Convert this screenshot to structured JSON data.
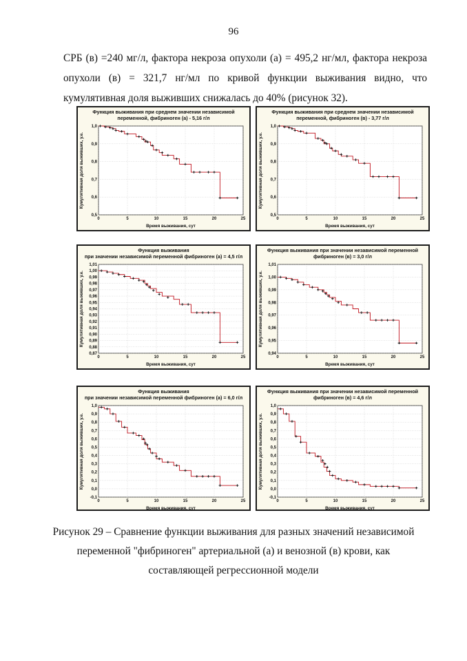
{
  "page": {
    "number": "96",
    "lines": [
      "СРБ (в) =240 мг/л, фактора некроза опухоли (а) = 495,2 нг/мл, фактора некроза",
      "опухоли (в) = 321,7 нг/мл по кривой функции выживания видно, что",
      "кумулятивная доля выживших снижалась до 40% (рисунок 32)."
    ],
    "caption_lines": [
      "Рисунок 29 – Сравнение функции выживания для разных значений независимой",
      "переменной \"фибриноген\" артериальной (а) и венозной (в) крови, как",
      "составляющей регрессионной модели"
    ]
  },
  "colors": {
    "curve": "#c0141e",
    "marker": "#111111",
    "plot_bg": "#ffffff",
    "panel_bg": "#fbf9ec",
    "grid": "#b8b8b8"
  },
  "chart_data": [
    {
      "type": "line",
      "title_lines": [
        "Функция выживания при среднем значении независимой",
        "переменной, фибриноген (а) - 5,16 г/л"
      ],
      "xlabel": "Время выживания, сут",
      "ylabel": "Кумулятивная доля выживших, у.е.",
      "xlim": [
        0,
        25
      ],
      "ylim": [
        0.5,
        1.0
      ],
      "xticks": [
        0,
        5,
        10,
        15,
        20,
        25
      ],
      "xtick_labels": [
        "0",
        "5",
        "10",
        "15",
        "20",
        "25"
      ],
      "yticks": [
        0.5,
        0.6,
        0.7,
        0.8,
        0.9,
        1.0
      ],
      "ytick_labels": [
        "0,5",
        "0,6",
        "0,7",
        "0,8",
        "0,9",
        "1,0"
      ],
      "grid": true,
      "steps": [
        [
          0,
          1.0
        ],
        [
          1,
          0.995
        ],
        [
          2,
          0.99
        ],
        [
          2.5,
          0.985
        ],
        [
          3,
          0.975
        ],
        [
          3.5,
          0.97
        ],
        [
          4.5,
          0.955
        ],
        [
          6.5,
          0.94
        ],
        [
          7.5,
          0.925
        ],
        [
          8,
          0.91
        ],
        [
          9,
          0.89
        ],
        [
          9.5,
          0.865
        ],
        [
          10.5,
          0.85
        ],
        [
          11,
          0.835
        ],
        [
          13,
          0.815
        ],
        [
          14,
          0.785
        ],
        [
          16,
          0.74
        ],
        [
          21,
          0.595
        ],
        [
          24,
          0.595
        ]
      ],
      "markers": [
        [
          0.3,
          1.0
        ],
        [
          1.2,
          0.995
        ],
        [
          2,
          0.99
        ],
        [
          2.5,
          0.985
        ],
        [
          3,
          0.975
        ],
        [
          4,
          0.97
        ],
        [
          5,
          0.955
        ],
        [
          7,
          0.94
        ],
        [
          7.8,
          0.925
        ],
        [
          8.2,
          0.915
        ],
        [
          8.5,
          0.91
        ],
        [
          9.3,
          0.89
        ],
        [
          10,
          0.865
        ],
        [
          11,
          0.85
        ],
        [
          12,
          0.835
        ],
        [
          13.5,
          0.815
        ],
        [
          15,
          0.785
        ],
        [
          16.5,
          0.74
        ],
        [
          17.5,
          0.74
        ],
        [
          19,
          0.74
        ],
        [
          20,
          0.74
        ],
        [
          21,
          0.595
        ],
        [
          24,
          0.595
        ]
      ]
    },
    {
      "type": "line",
      "title_lines": [
        "Функция выживания при среднем значении независимой",
        "переменной, фибриноген (в) - 3,77 г/л"
      ],
      "xlabel": "Время выживания, сут",
      "ylabel": "Кумулятивная доля выживших, у.е.",
      "xlim": [
        0,
        25
      ],
      "ylim": [
        0.5,
        1.0
      ],
      "xticks": [
        0,
        5,
        10,
        15,
        20,
        25
      ],
      "xtick_labels": [
        "0",
        "5",
        "10",
        "15",
        "20",
        "25"
      ],
      "yticks": [
        0.5,
        0.6,
        0.7,
        0.8,
        0.9,
        1.0
      ],
      "ytick_labels": [
        "0,5",
        "0,6",
        "0,7",
        "0,8",
        "0,9",
        "1,0"
      ],
      "grid": true,
      "steps": [
        [
          0,
          1.0
        ],
        [
          1,
          0.995
        ],
        [
          2,
          0.99
        ],
        [
          2.5,
          0.985
        ],
        [
          3,
          0.975
        ],
        [
          3.5,
          0.97
        ],
        [
          4.5,
          0.96
        ],
        [
          6.5,
          0.93
        ],
        [
          7.5,
          0.92
        ],
        [
          8,
          0.9
        ],
        [
          9,
          0.875
        ],
        [
          9.5,
          0.86
        ],
        [
          10.5,
          0.84
        ],
        [
          11,
          0.83
        ],
        [
          13,
          0.81
        ],
        [
          14,
          0.79
        ],
        [
          16,
          0.715
        ],
        [
          21,
          0.595
        ],
        [
          24,
          0.595
        ]
      ],
      "markers": [
        [
          0.3,
          1.0
        ],
        [
          1.2,
          0.995
        ],
        [
          2,
          0.99
        ],
        [
          2.5,
          0.985
        ],
        [
          3,
          0.975
        ],
        [
          4,
          0.97
        ],
        [
          5,
          0.96
        ],
        [
          7,
          0.93
        ],
        [
          7.8,
          0.92
        ],
        [
          8.2,
          0.905
        ],
        [
          8.5,
          0.9
        ],
        [
          9.3,
          0.875
        ],
        [
          10,
          0.86
        ],
        [
          11,
          0.84
        ],
        [
          12,
          0.83
        ],
        [
          13.5,
          0.81
        ],
        [
          15,
          0.79
        ],
        [
          16.5,
          0.715
        ],
        [
          17.5,
          0.715
        ],
        [
          19,
          0.715
        ],
        [
          20,
          0.715
        ],
        [
          21,
          0.595
        ],
        [
          24,
          0.595
        ]
      ]
    },
    {
      "type": "line",
      "title_lines": [
        "Функция выживания",
        "при значении независимой переменной фибриноген (а) = 4,5 г/л"
      ],
      "xlabel": "Время выживания, сут",
      "ylabel": "Кумулятивная доля выживших, у.е.",
      "xlim": [
        0,
        25
      ],
      "ylim": [
        0.87,
        1.01
      ],
      "xticks": [
        0,
        5,
        10,
        15,
        20,
        25
      ],
      "xtick_labels": [
        "0",
        "5",
        "10",
        "15",
        "20",
        "25"
      ],
      "yticks": [
        0.87,
        0.88,
        0.89,
        0.9,
        0.91,
        0.92,
        0.93,
        0.94,
        0.95,
        0.96,
        0.97,
        0.98,
        0.99,
        1.0,
        1.01
      ],
      "ytick_labels": [
        "0,87",
        "0,88",
        "0,89",
        "0,90",
        "0,91",
        "0,92",
        "0,93",
        "0,94",
        "0,95",
        "0,96",
        "0,97",
        "0,98",
        "0,99",
        "1,00",
        "1,01"
      ],
      "grid": true,
      "steps": [
        [
          0,
          1.0
        ],
        [
          1.5,
          0.998
        ],
        [
          2.5,
          0.996
        ],
        [
          3.5,
          0.994
        ],
        [
          4.5,
          0.991
        ],
        [
          5.5,
          0.988
        ],
        [
          7,
          0.985
        ],
        [
          8,
          0.98
        ],
        [
          8.5,
          0.976
        ],
        [
          9,
          0.972
        ],
        [
          10,
          0.966
        ],
        [
          11,
          0.96
        ],
        [
          13,
          0.955
        ],
        [
          14,
          0.947
        ],
        [
          16,
          0.934
        ],
        [
          21,
          0.887
        ],
        [
          24,
          0.887
        ]
      ],
      "markers": [
        [
          0.5,
          1.0
        ],
        [
          1.5,
          0.998
        ],
        [
          2.5,
          0.996
        ],
        [
          3.5,
          0.994
        ],
        [
          4.5,
          0.991
        ],
        [
          6,
          0.988
        ],
        [
          7,
          0.985
        ],
        [
          7.8,
          0.983
        ],
        [
          8.3,
          0.978
        ],
        [
          8.8,
          0.974
        ],
        [
          9.5,
          0.969
        ],
        [
          10.5,
          0.963
        ],
        [
          12,
          0.958
        ],
        [
          14.5,
          0.947
        ],
        [
          15.5,
          0.947
        ],
        [
          17,
          0.934
        ],
        [
          18,
          0.934
        ],
        [
          19,
          0.934
        ],
        [
          20,
          0.934
        ],
        [
          21,
          0.887
        ],
        [
          24,
          0.887
        ]
      ]
    },
    {
      "type": "line",
      "title_lines": [
        "Функция выживания при   значении независимой переменной",
        "фибриноген (в) = 3,0 г/л"
      ],
      "xlabel": "Время выживания, сут",
      "ylabel": "Кумулятивная доля выживших, у.е.",
      "xlim": [
        0,
        25
      ],
      "ylim": [
        0.94,
        1.01
      ],
      "xticks": [
        0,
        5,
        10,
        15,
        20,
        25
      ],
      "xtick_labels": [
        "0",
        "5",
        "10",
        "15",
        "20",
        "25"
      ],
      "yticks": [
        0.94,
        0.95,
        0.96,
        0.97,
        0.98,
        0.99,
        1.0,
        1.01
      ],
      "ytick_labels": [
        "0,94",
        "0,95",
        "0,96",
        "0,97",
        "0,98",
        "0,99",
        "1,00",
        "1,01"
      ],
      "grid": true,
      "steps": [
        [
          0,
          1.0
        ],
        [
          1.5,
          0.999
        ],
        [
          2.5,
          0.998
        ],
        [
          3.5,
          0.996
        ],
        [
          4.5,
          0.994
        ],
        [
          5.5,
          0.992
        ],
        [
          7,
          0.99
        ],
        [
          8,
          0.988
        ],
        [
          8.5,
          0.986
        ],
        [
          9,
          0.984
        ],
        [
          10,
          0.981
        ],
        [
          11,
          0.978
        ],
        [
          13,
          0.975
        ],
        [
          14,
          0.972
        ],
        [
          16,
          0.966
        ],
        [
          21,
          0.948
        ],
        [
          24,
          0.948
        ]
      ],
      "markers": [
        [
          0.5,
          1.0
        ],
        [
          1.5,
          0.999
        ],
        [
          2.5,
          0.998
        ],
        [
          3.5,
          0.996
        ],
        [
          4.5,
          0.994
        ],
        [
          6,
          0.992
        ],
        [
          7,
          0.99
        ],
        [
          7.8,
          0.989
        ],
        [
          8.3,
          0.987
        ],
        [
          8.8,
          0.985
        ],
        [
          9.5,
          0.983
        ],
        [
          10.5,
          0.98
        ],
        [
          12,
          0.978
        ],
        [
          14.5,
          0.972
        ],
        [
          15.5,
          0.972
        ],
        [
          17,
          0.966
        ],
        [
          18,
          0.966
        ],
        [
          19,
          0.966
        ],
        [
          20,
          0.966
        ],
        [
          21,
          0.948
        ],
        [
          24,
          0.948
        ]
      ]
    },
    {
      "type": "line",
      "title_lines": [
        "Функция выживания",
        "при значении независимой переменной фибриноген (а) = 6,0 г/л"
      ],
      "xlabel": "Время выживания, сут",
      "ylabel": "Кумулятивная доля выживших, у.е.",
      "xlim": [
        0,
        25
      ],
      "ylim": [
        -0.1,
        1.0
      ],
      "xticks": [
        0,
        5,
        10,
        15,
        20,
        25
      ],
      "xtick_labels": [
        "0",
        "5",
        "10",
        "15",
        "20",
        "25"
      ],
      "yticks": [
        -0.1,
        0,
        0.1,
        0.2,
        0.3,
        0.4,
        0.5,
        0.6,
        0.7,
        0.8,
        0.9,
        1.0
      ],
      "ytick_labels": [
        "-0,1",
        "0,0",
        "0,1",
        "0,2",
        "0,3",
        "0,4",
        "0,5",
        "0,6",
        "0,7",
        "0,8",
        "0,9",
        "1,0"
      ],
      "grid": true,
      "steps": [
        [
          0,
          0.98
        ],
        [
          1,
          0.96
        ],
        [
          2,
          0.9
        ],
        [
          3,
          0.81
        ],
        [
          4,
          0.74
        ],
        [
          5,
          0.67
        ],
        [
          6.5,
          0.64
        ],
        [
          7.5,
          0.59
        ],
        [
          8,
          0.53
        ],
        [
          8.5,
          0.48
        ],
        [
          9,
          0.43
        ],
        [
          10,
          0.36
        ],
        [
          11,
          0.32
        ],
        [
          13,
          0.28
        ],
        [
          14,
          0.22
        ],
        [
          16,
          0.15
        ],
        [
          21,
          0.04
        ],
        [
          24,
          0.04
        ]
      ],
      "markers": [
        [
          0.5,
          0.98
        ],
        [
          1.5,
          0.96
        ],
        [
          2.5,
          0.9
        ],
        [
          3.5,
          0.81
        ],
        [
          4.5,
          0.74
        ],
        [
          6,
          0.67
        ],
        [
          7,
          0.64
        ],
        [
          7.8,
          0.6
        ],
        [
          8.1,
          0.55
        ],
        [
          8.4,
          0.53
        ],
        [
          8.8,
          0.48
        ],
        [
          9.3,
          0.43
        ],
        [
          10,
          0.39
        ],
        [
          10.5,
          0.36
        ],
        [
          12,
          0.32
        ],
        [
          13.5,
          0.28
        ],
        [
          15,
          0.22
        ],
        [
          17,
          0.15
        ],
        [
          18,
          0.15
        ],
        [
          19,
          0.15
        ],
        [
          20,
          0.15
        ],
        [
          21,
          0.04
        ],
        [
          24,
          0.04
        ]
      ]
    },
    {
      "type": "line",
      "title_lines": [
        "Функция выживания при значении независимой переменной",
        "фибриноген (в) = 4,6 г/л"
      ],
      "xlabel": "Время выживания, сут",
      "ylabel": "Кумулятивная доля выживших, у.е.",
      "xlim": [
        0,
        25
      ],
      "ylim": [
        -0.1,
        1.0
      ],
      "xticks": [
        0,
        5,
        10,
        15,
        20,
        25
      ],
      "xtick_labels": [
        "0",
        "5",
        "10",
        "15",
        "20",
        "25"
      ],
      "yticks": [
        -0.1,
        0,
        0.1,
        0.2,
        0.3,
        0.4,
        0.5,
        0.6,
        0.7,
        0.8,
        0.9,
        1.0
      ],
      "ytick_labels": [
        "-0,1",
        "0,0",
        "0,1",
        "0,2",
        "0,3",
        "0,4",
        "0,5",
        "0,6",
        "0,7",
        "0,8",
        "0,9",
        "1,0"
      ],
      "grid": true,
      "steps": [
        [
          0,
          0.96
        ],
        [
          1,
          0.9
        ],
        [
          2,
          0.81
        ],
        [
          3,
          0.63
        ],
        [
          4,
          0.56
        ],
        [
          5,
          0.43
        ],
        [
          6.5,
          0.39
        ],
        [
          7.5,
          0.32
        ],
        [
          8,
          0.26
        ],
        [
          8.5,
          0.21
        ],
        [
          9,
          0.16
        ],
        [
          10,
          0.12
        ],
        [
          11,
          0.1
        ],
        [
          13,
          0.08
        ],
        [
          14,
          0.05
        ],
        [
          16,
          0.03
        ],
        [
          21,
          0.01
        ],
        [
          24,
          0.01
        ]
      ],
      "markers": [
        [
          0.5,
          0.96
        ],
        [
          1.5,
          0.9
        ],
        [
          2.5,
          0.81
        ],
        [
          3.2,
          0.63
        ],
        [
          4,
          0.56
        ],
        [
          5.5,
          0.43
        ],
        [
          7,
          0.39
        ],
        [
          7.8,
          0.34
        ],
        [
          8.2,
          0.3
        ],
        [
          8.6,
          0.26
        ],
        [
          9,
          0.21
        ],
        [
          9.5,
          0.16
        ],
        [
          10.5,
          0.12
        ],
        [
          12,
          0.1
        ],
        [
          13.5,
          0.08
        ],
        [
          15,
          0.05
        ],
        [
          17,
          0.03
        ],
        [
          18,
          0.03
        ],
        [
          19,
          0.03
        ],
        [
          20,
          0.03
        ],
        [
          21,
          0.01
        ],
        [
          24,
          0.01
        ]
      ]
    }
  ]
}
